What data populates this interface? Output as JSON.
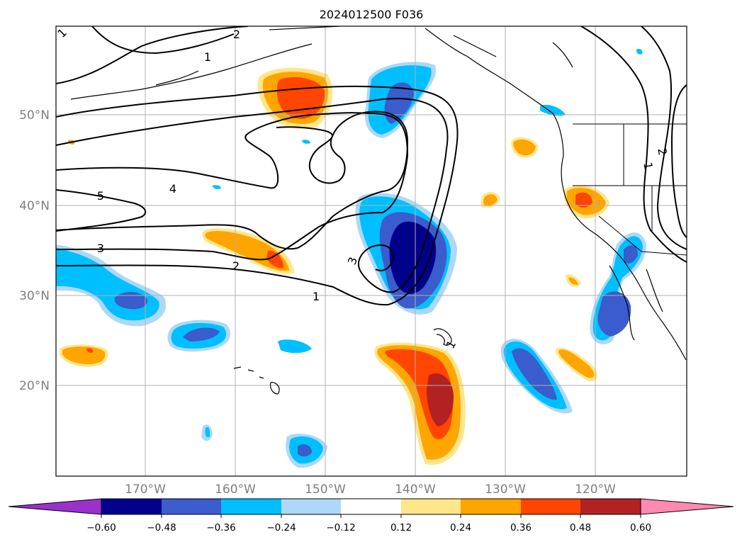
{
  "title": "2024012500 F036",
  "map": {
    "lat_labels": [
      "50°N",
      "40°N",
      "30°N",
      "20°N"
    ],
    "lon_labels": [
      "170°W",
      "160°W",
      "150°W",
      "140°W",
      "130°W",
      "120°W"
    ],
    "contour_labels": [
      "1",
      "2",
      "3",
      "4",
      "5",
      "3",
      "2",
      "1",
      "1",
      "2",
      "1",
      "1"
    ]
  },
  "colorbar": {
    "ticks": [
      "−0.60",
      "−0.48",
      "−0.36",
      "−0.24",
      "−0.12",
      "0.12",
      "0.24",
      "0.36",
      "0.48",
      "0.60"
    ],
    "colors": [
      "#9932cc",
      "#00008b",
      "#3a5ccc",
      "#00bfff",
      "#add8f7",
      "#ffffff",
      "#ffe68a",
      "#ffa500",
      "#ff4500",
      "#b22222",
      "#ff89b0"
    ]
  },
  "colors": {
    "contour": "#000000",
    "grid": "#b0b0b0",
    "coast": "#000000"
  }
}
